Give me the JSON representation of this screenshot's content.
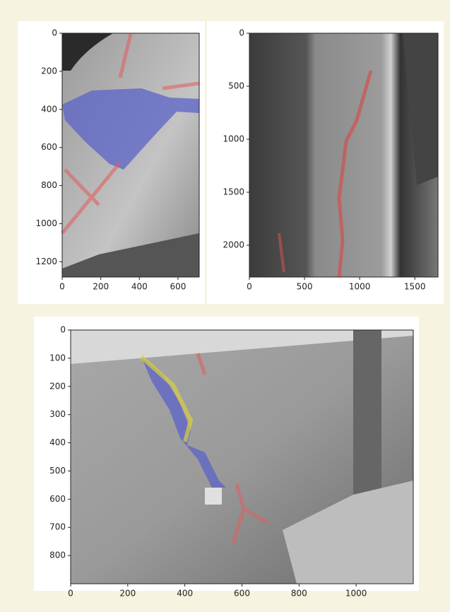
{
  "chart_data": [
    {
      "type": "image",
      "xlim": [
        0,
        710
      ],
      "ylim": [
        1280,
        0
      ],
      "xticks": [
        0,
        200,
        400,
        600
      ],
      "yticks": [
        0,
        200,
        400,
        600,
        800,
        1000,
        1200
      ]
    },
    {
      "type": "image",
      "xlim": [
        0,
        1710
      ],
      "ylim": [
        2300,
        0
      ],
      "xticks": [
        0,
        500,
        1000,
        1500
      ],
      "yticks": [
        0,
        500,
        1000,
        1500,
        2000
      ]
    },
    {
      "type": "image",
      "xlim": [
        0,
        1200
      ],
      "ylim": [
        900,
        0
      ],
      "xticks": [
        0,
        200,
        400,
        600,
        800,
        1000
      ],
      "yticks": [
        0,
        100,
        200,
        300,
        400,
        500,
        600,
        700,
        800
      ]
    }
  ]
}
